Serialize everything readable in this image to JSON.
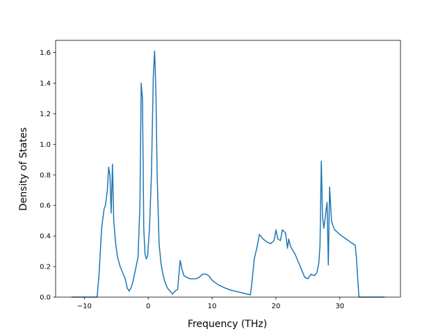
{
  "chart_data": {
    "type": "line",
    "title": "",
    "xlabel": "Frequency (THz)",
    "ylabel": "Density of States",
    "xlim": [
      -14.5,
      39.5
    ],
    "ylim": [
      0.0,
      1.68
    ],
    "xticks": [
      -10,
      0,
      10,
      20,
      30
    ],
    "xtick_labels": [
      "−10",
      "0",
      "10",
      "20",
      "30"
    ],
    "yticks": [
      0.0,
      0.2,
      0.4,
      0.6,
      0.8,
      1.0,
      1.2,
      1.4,
      1.6
    ],
    "ytick_labels": [
      "0.0",
      "0.2",
      "0.4",
      "0.6",
      "0.8",
      "1.0",
      "1.2",
      "1.4",
      "1.6"
    ],
    "grid": false,
    "series": [
      {
        "color": "#1f77b4",
        "x": [
          -12,
          -8,
          -7.7,
          -7.3,
          -6.9,
          -6.7,
          -6.4,
          -6.2,
          -6.0,
          -5.8,
          -5.6,
          -5.4,
          -5.1,
          -4.8,
          -4.4,
          -4.0,
          -3.6,
          -3.3,
          -3.0,
          -2.7,
          -2.4,
          -2.0,
          -1.6,
          -1.3,
          -1.1,
          -0.9,
          -0.7,
          -0.5,
          -0.3,
          -0.1,
          0.2,
          0.5,
          0.8,
          1.0,
          1.2,
          1.4,
          1.7,
          2.0,
          2.3,
          2.6,
          3.0,
          3.4,
          3.8,
          4.2,
          4.6,
          5.0,
          5.3,
          5.6,
          6.0,
          6.5,
          7.0,
          7.5,
          8.0,
          8.5,
          9.0,
          9.5,
          10.0,
          11.0,
          12.0,
          13.0,
          14.0,
          15.0,
          16.0,
          16.3,
          16.6,
          17.0,
          17.4,
          18.0,
          18.6,
          19.2,
          19.7,
          20.0,
          20.3,
          20.7,
          21.0,
          21.5,
          21.8,
          22.0,
          22.3,
          23.0,
          24.0,
          24.5,
          25.0,
          25.5,
          26.0,
          26.4,
          26.7,
          26.9,
          27.1,
          27.3,
          27.5,
          27.7,
          28.0,
          28.2,
          28.4,
          28.7,
          28.9,
          29.2,
          30.0,
          31.0,
          32.0,
          32.4,
          32.6,
          32.8,
          33.0,
          33.3,
          37.0
        ],
        "y": [
          0.0,
          0.0,
          0.15,
          0.45,
          0.58,
          0.6,
          0.7,
          0.85,
          0.8,
          0.55,
          0.87,
          0.5,
          0.35,
          0.26,
          0.2,
          0.16,
          0.12,
          0.06,
          0.04,
          0.06,
          0.1,
          0.18,
          0.26,
          0.6,
          1.4,
          1.3,
          0.45,
          0.28,
          0.25,
          0.27,
          0.45,
          0.8,
          1.45,
          1.61,
          1.35,
          0.8,
          0.35,
          0.22,
          0.15,
          0.1,
          0.06,
          0.04,
          0.02,
          0.04,
          0.05,
          0.24,
          0.18,
          0.14,
          0.13,
          0.12,
          0.12,
          0.12,
          0.13,
          0.15,
          0.15,
          0.14,
          0.11,
          0.08,
          0.06,
          0.045,
          0.035,
          0.025,
          0.015,
          0.12,
          0.25,
          0.32,
          0.41,
          0.38,
          0.36,
          0.35,
          0.37,
          0.44,
          0.38,
          0.37,
          0.44,
          0.42,
          0.32,
          0.38,
          0.33,
          0.28,
          0.18,
          0.13,
          0.12,
          0.15,
          0.14,
          0.16,
          0.22,
          0.34,
          0.89,
          0.52,
          0.45,
          0.52,
          0.62,
          0.21,
          0.72,
          0.5,
          0.47,
          0.44,
          0.41,
          0.38,
          0.35,
          0.34,
          0.26,
          0.12,
          0.0,
          0.0,
          0.0
        ]
      }
    ]
  }
}
